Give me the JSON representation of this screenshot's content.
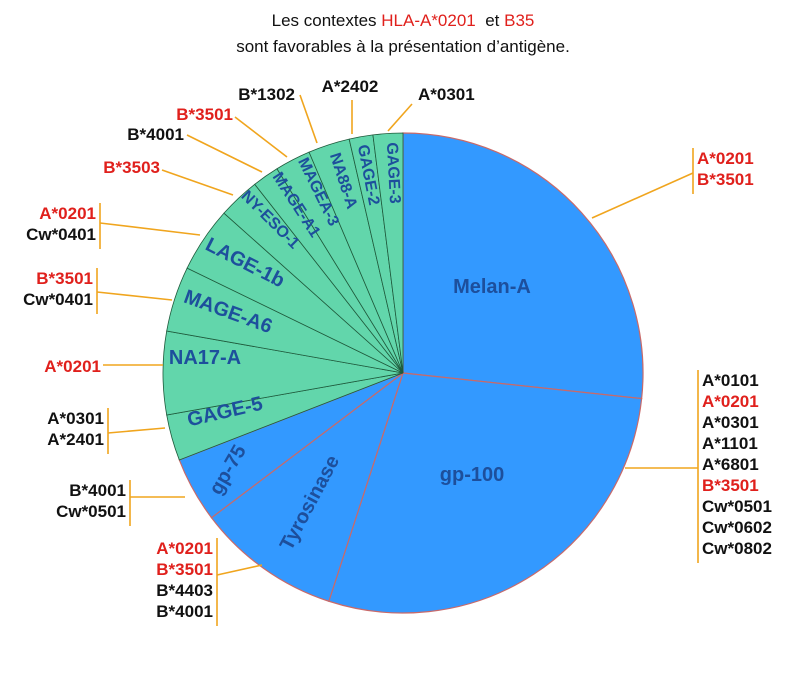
{
  "chart_data": {
    "type": "pie",
    "title": {
      "line1_parts": [
        {
          "text": "Les contextes ",
          "highlight": false
        },
        {
          "text": "HLA-A*0201",
          "highlight": true
        },
        {
          "text": "  et ",
          "highlight": false
        },
        {
          "text": "B35",
          "highlight": true
        }
      ],
      "line2": "sont favorables à la présentation d’antigène."
    },
    "unit": "percent of circle (estimated)",
    "colors": {
      "blue": "#3399ff",
      "green": "#62d6ab",
      "label": "#1d4f9c",
      "highlight": "#e0201c",
      "leader": "#f0a51e"
    },
    "slices": [
      {
        "label": "Melan-A",
        "value": 26.7,
        "group": "blue",
        "alleles": [
          {
            "t": "A*0201",
            "red": true
          },
          {
            "t": "B*3501",
            "red": true
          }
        ]
      },
      {
        "label": "gp-100",
        "value": 28.3,
        "group": "blue",
        "alleles": [
          {
            "t": "A*0101",
            "red": false
          },
          {
            "t": "A*0201",
            "red": true
          },
          {
            "t": "A*0301",
            "red": false
          },
          {
            "t": "A*1101",
            "red": false
          },
          {
            "t": "A*6801",
            "red": false
          },
          {
            "t": "B*3501",
            "red": true
          },
          {
            "t": "Cw*0501",
            "red": false
          },
          {
            "t": "Cw*0602",
            "red": false
          },
          {
            "t": "Cw*0802",
            "red": false
          }
        ]
      },
      {
        "label": "Tyrosinase",
        "value": 9.7,
        "group": "blue",
        "alleles": [
          {
            "t": "A*0201",
            "red": true
          },
          {
            "t": "B*3501",
            "red": true
          },
          {
            "t": "B*4403",
            "red": false
          },
          {
            "t": "B*4001",
            "red": false
          }
        ]
      },
      {
        "label": "gp-75",
        "value": 4.4,
        "group": "blue",
        "alleles": [
          {
            "t": "B*4001",
            "red": false
          },
          {
            "t": "Cw*0501",
            "red": false
          }
        ]
      },
      {
        "label": "GAGE-5",
        "value": 3.1,
        "group": "green",
        "alleles": [
          {
            "t": "A*0301",
            "red": false
          },
          {
            "t": "A*2401",
            "red": false
          }
        ]
      },
      {
        "label": "NA17-A",
        "value": 5.6,
        "group": "green",
        "alleles": [
          {
            "t": "A*0201",
            "red": true
          }
        ]
      },
      {
        "label": "MAGE-A6",
        "value": 4.4,
        "group": "green",
        "alleles": [
          {
            "t": "B*3501",
            "red": true
          },
          {
            "t": "Cw*0401",
            "red": false
          }
        ]
      },
      {
        "label": "LAGE-1b",
        "value": 4.4,
        "group": "green",
        "alleles": [
          {
            "t": "A*0201",
            "red": true
          },
          {
            "t": "Cw*0401",
            "red": false
          }
        ]
      },
      {
        "label": "NY-ESO-1",
        "value": 2.8,
        "group": "green",
        "alleles": [
          {
            "t": "B*3503",
            "red": true
          }
        ]
      },
      {
        "label": "MAGE-A1",
        "value": 1.8,
        "group": "green",
        "alleles": [
          {
            "t": "B*4001",
            "red": false
          }
        ]
      },
      {
        "label": "MAGEA-3",
        "value": 2.4,
        "group": "green",
        "alleles": [
          {
            "t": "B*3501",
            "red": true
          }
        ]
      },
      {
        "label": "NA88-A",
        "value": 2.8,
        "group": "green",
        "alleles": [
          {
            "t": "B*1302",
            "red": false
          }
        ]
      },
      {
        "label": "GAGE-2",
        "value": 1.6,
        "group": "green",
        "alleles": [
          {
            "t": "A*2402",
            "red": false
          }
        ]
      },
      {
        "label": "GAGE-3",
        "value": 2.0,
        "group": "green",
        "alleles": [
          {
            "t": "A*0301",
            "red": false
          }
        ]
      }
    ]
  }
}
